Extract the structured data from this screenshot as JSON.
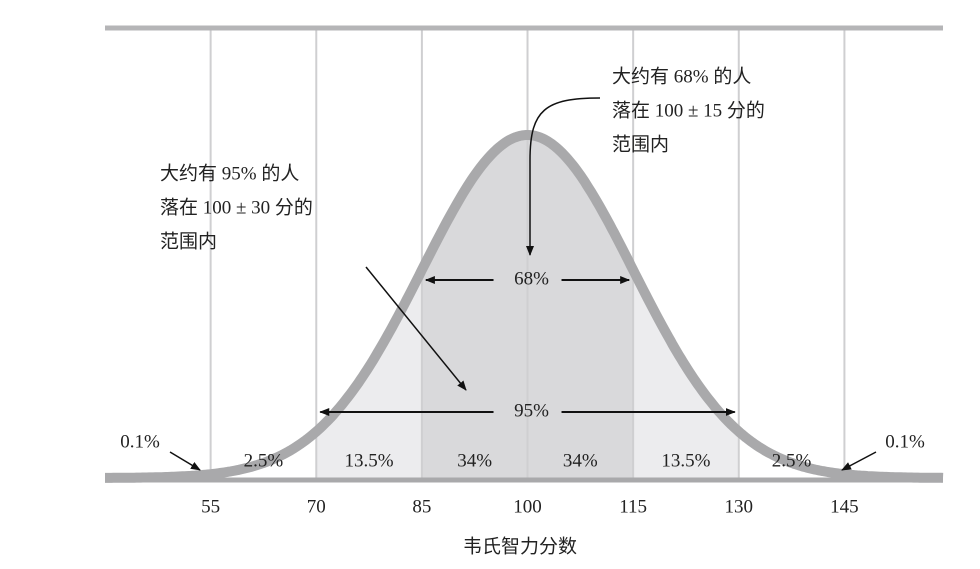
{
  "chart_data": {
    "type": "normal",
    "xlabel": "韦氏智力分数",
    "xlim": [
      40,
      159
    ],
    "xticks": [
      55,
      70,
      85,
      100,
      115,
      130,
      145
    ],
    "grid": true,
    "color": "#a9a9ab",
    "regions": {
      "values": [
        0.1,
        2.5,
        13.5,
        34,
        34,
        13.5,
        2.5,
        0.1
      ],
      "value_labels": [
        "0.1%",
        "2.5%",
        "13.5%",
        "34%",
        "34%",
        "13.5%",
        "2.5%",
        "0.1%"
      ]
    },
    "intervals": {
      "values": [
        68,
        95
      ],
      "value_labels": [
        "68%",
        "95%"
      ]
    },
    "annotations": [
      [
        "大约有 68% 的人",
        "落在 100 ± 15 分的",
        "范围内"
      ],
      [
        "大约有 95% 的人",
        "落在 100 ± 30 分的",
        "范围内"
      ]
    ]
  }
}
